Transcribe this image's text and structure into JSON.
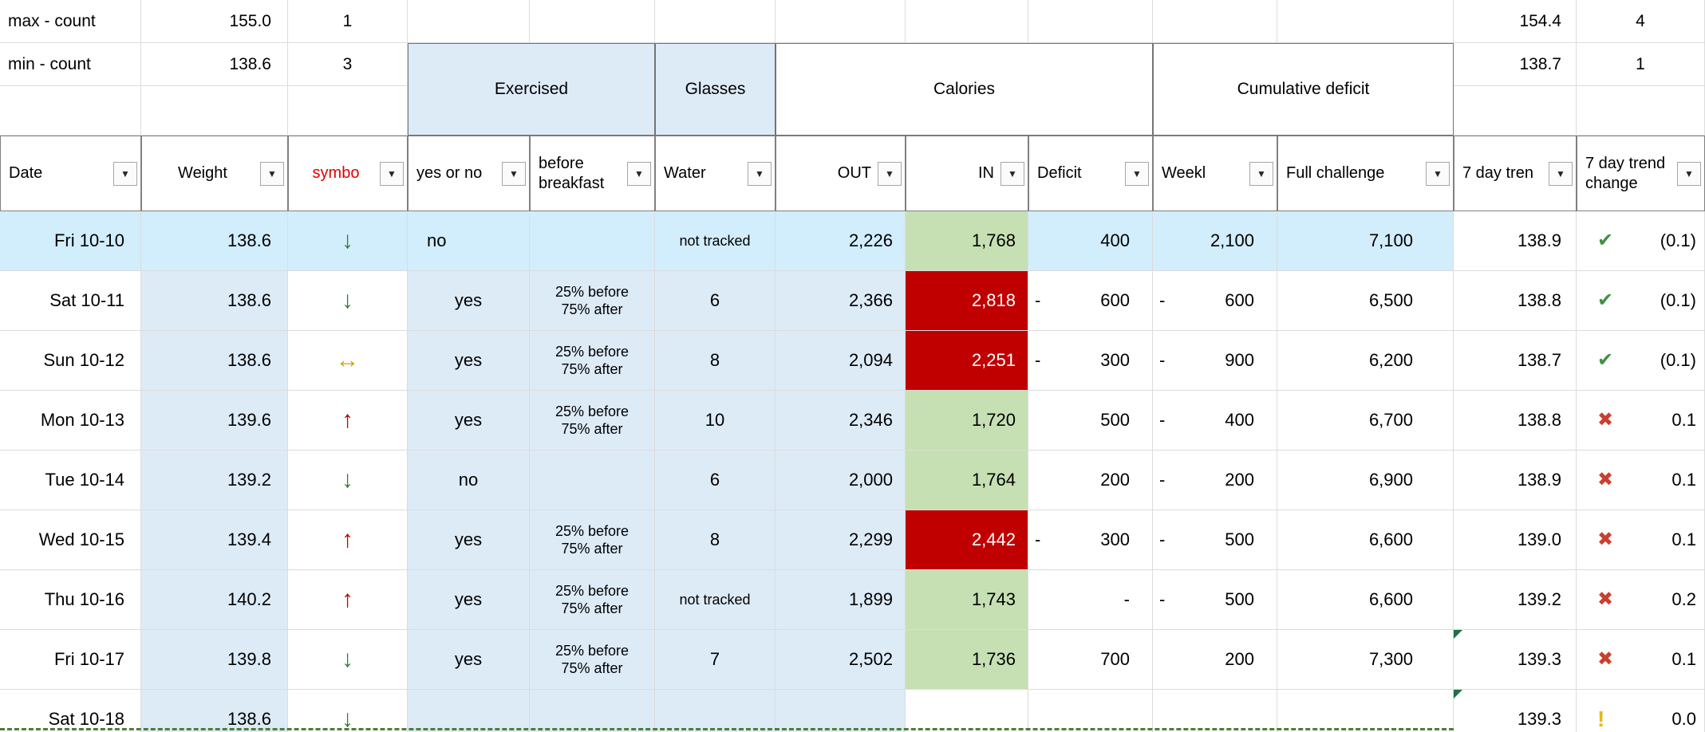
{
  "colors": {
    "fill_blue": "#DDEBF7",
    "fill_highlight": "#D2EDFB",
    "fill_green": "#C6E0B4",
    "fill_red": "#C00000",
    "arrow_up": "#C00000",
    "arrow_down": "#2F7D31",
    "arrow_flat": "#C9A618",
    "icon_check": "#3F9142",
    "icon_x": "#C9402E",
    "icon_warn": "#E8B90C",
    "error_triangle": "#1E7145",
    "dashed_line": "#4E7E37",
    "symbol_header_red": "#E00000"
  },
  "icons": {
    "arrow_down": "↓",
    "arrow_up": "↑",
    "arrow_flat": "↔",
    "check": "✔",
    "cross": "✖",
    "warn": "!",
    "filter_caret": "▼"
  },
  "stats": {
    "max": {
      "label": "max - count",
      "weight": "155.0",
      "count": "1",
      "trend": "154.4",
      "trend_count": "4"
    },
    "min": {
      "label": "min - count",
      "weight": "138.6",
      "count": "3",
      "trend": "138.7",
      "trend_count": "1"
    }
  },
  "groups": {
    "exercised": "Exercised",
    "glasses": "Glasses",
    "calories": "Calories",
    "cumulative_deficit": "Cumulative deficit"
  },
  "headers": {
    "date": "Date",
    "weight": "Weight",
    "symbol": "symbo",
    "yes_or_no": "yes or no",
    "before_line1": "before",
    "before_line2": "breakfast",
    "water": "Water",
    "out": "OUT",
    "in": "IN",
    "deficit": "Deficit",
    "weekly": "Weekl",
    "full_challenge": "Full challenge",
    "trend7": "7 day tren",
    "change_line1": "7 day trend",
    "change_line2": "change"
  },
  "rows": [
    {
      "date": "Fri 10-10",
      "weight": "138.6",
      "symbol": "down",
      "yes_no": "no",
      "yes_no_align": "left",
      "water": "not tracked",
      "water_small": true,
      "out": "2,226",
      "in": "1,768",
      "in_state": "green",
      "deficit_minus": "",
      "deficit": "400",
      "weekly_minus": "",
      "weekly": "2,100",
      "full": "7,100",
      "trend7": "138.9",
      "icon": "check",
      "change": "(0.1)",
      "highlight": true
    },
    {
      "date": "Sat 10-11",
      "weight": "138.6",
      "symbol": "down",
      "yes_no": "yes",
      "before": [
        "25% before",
        "75% after"
      ],
      "water": "6",
      "out": "2,366",
      "in": "2,818",
      "in_state": "red",
      "deficit_minus": "-",
      "deficit": "600",
      "weekly_minus": "-",
      "weekly": "600",
      "full": "6,500",
      "trend7": "138.8",
      "icon": "check",
      "change": "(0.1)"
    },
    {
      "date": "Sun 10-12",
      "weight": "138.6",
      "symbol": "flat",
      "yes_no": "yes",
      "before": [
        "25% before",
        "75% after"
      ],
      "water": "8",
      "out": "2,094",
      "in": "2,251",
      "in_state": "red",
      "deficit_minus": "-",
      "deficit": "300",
      "weekly_minus": "-",
      "weekly": "900",
      "full": "6,200",
      "trend7": "138.7",
      "icon": "check",
      "change": "(0.1)"
    },
    {
      "date": "Mon 10-13",
      "weight": "139.6",
      "symbol": "up",
      "yes_no": "yes",
      "before": [
        "25% before",
        "75% after"
      ],
      "water": "10",
      "out": "2,346",
      "in": "1,720",
      "in_state": "green",
      "deficit_minus": "",
      "deficit": "500",
      "weekly_minus": "-",
      "weekly": "400",
      "full": "6,700",
      "trend7": "138.8",
      "icon": "x",
      "change": "0.1"
    },
    {
      "date": "Tue 10-14",
      "weight": "139.2",
      "symbol": "down",
      "yes_no": "no",
      "water": "6",
      "out": "2,000",
      "in": "1,764",
      "in_state": "green",
      "deficit_minus": "",
      "deficit": "200",
      "weekly_minus": "-",
      "weekly": "200",
      "full": "6,900",
      "trend7": "138.9",
      "icon": "x",
      "change": "0.1"
    },
    {
      "date": "Wed 10-15",
      "weight": "139.4",
      "symbol": "up",
      "yes_no": "yes",
      "before": [
        "25% before",
        "75% after"
      ],
      "water": "8",
      "out": "2,299",
      "in": "2,442",
      "in_state": "red",
      "deficit_minus": "-",
      "deficit": "300",
      "weekly_minus": "-",
      "weekly": "500",
      "full": "6,600",
      "trend7": "139.0",
      "icon": "x",
      "change": "0.1"
    },
    {
      "date": "Thu 10-16",
      "weight": "140.2",
      "symbol": "up",
      "yes_no": "yes",
      "before": [
        "25% before",
        "75% after"
      ],
      "water": "not tracked",
      "water_small": true,
      "out": "1,899",
      "in": "1,743",
      "in_state": "green",
      "deficit_minus": "",
      "deficit": "-",
      "weekly_minus": "-",
      "weekly": "500",
      "full": "6,600",
      "trend7": "139.2",
      "icon": "x",
      "change": "0.2"
    },
    {
      "date": "Fri 10-17",
      "weight": "139.8",
      "symbol": "down",
      "yes_no": "yes",
      "before": [
        "25% before",
        "75% after"
      ],
      "water": "7",
      "out": "2,502",
      "in": "1,736",
      "in_state": "green",
      "deficit_minus": "",
      "deficit": "700",
      "weekly_minus": "",
      "weekly": "200",
      "full": "7,300",
      "trend7": "139.3",
      "icon": "x",
      "change": "0.1",
      "triangle": true
    },
    {
      "date": "Sat 10-18",
      "weight": "138.6",
      "symbol": "down",
      "yes_no": "",
      "water": "",
      "out": "",
      "in": "",
      "deficit_minus": "",
      "deficit": "",
      "weekly_minus": "",
      "weekly": "",
      "full": "",
      "trend7": "139.3",
      "icon": "warn",
      "change": "0.0",
      "triangle": true
    }
  ]
}
